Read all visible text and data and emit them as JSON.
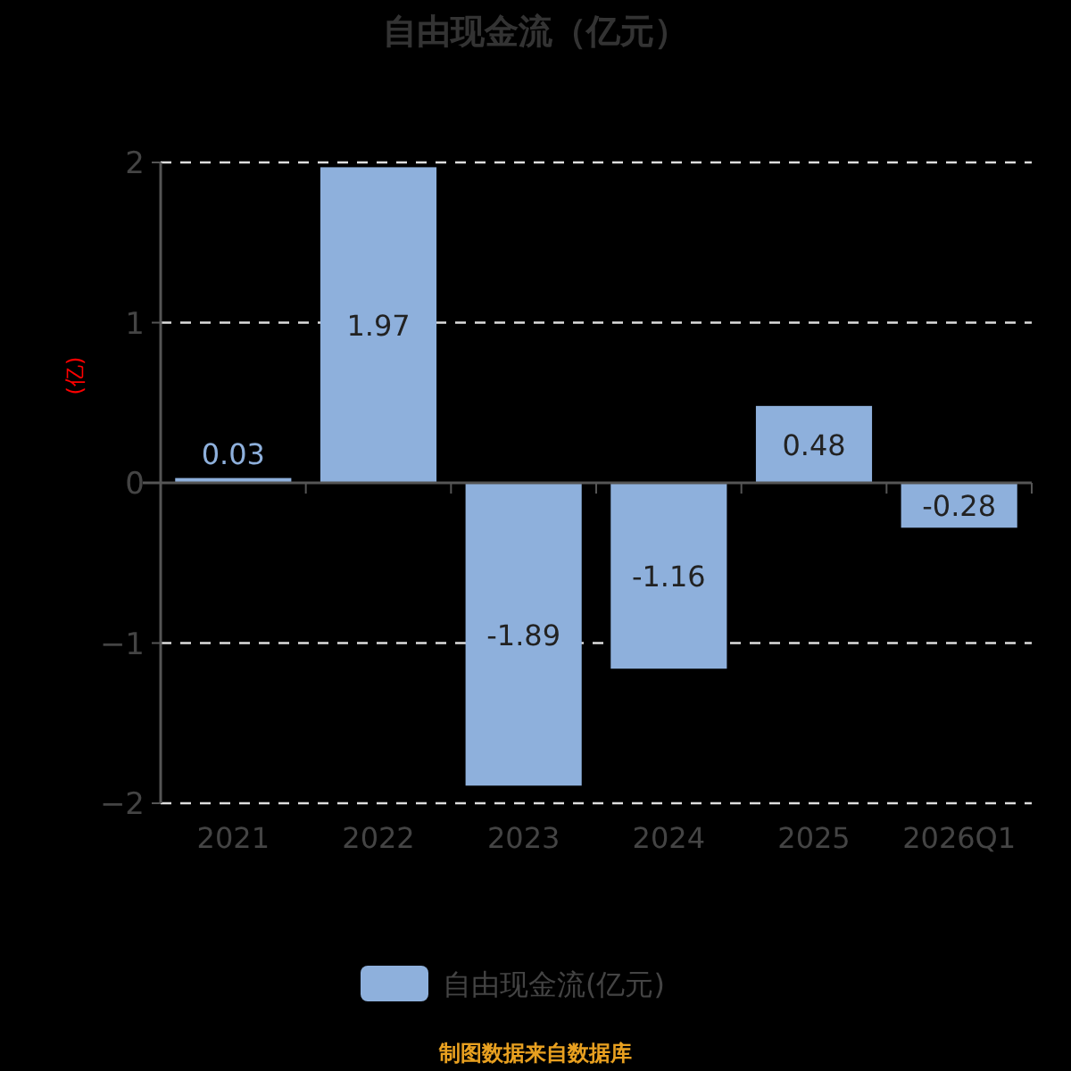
{
  "chart_data": {
    "type": "bar",
    "title": "自由现金流（亿元）",
    "ylabel": "(亿)",
    "categories": [
      "2021",
      "2022",
      "2023",
      "2024",
      "2025",
      "2026Q1"
    ],
    "series": [
      {
        "name": "自由现金流(亿元)",
        "color": "#8eb0dc",
        "values": [
          0.03,
          1.97,
          -1.89,
          -1.16,
          0.48,
          -0.28
        ]
      }
    ],
    "ylim": [
      -2,
      2
    ],
    "yticks": [
      -2,
      -1,
      0,
      1,
      2
    ],
    "grid": "y",
    "legend": "bottom",
    "data_labels": true,
    "annotations": [
      "制图数据来自数据库"
    ]
  }
}
